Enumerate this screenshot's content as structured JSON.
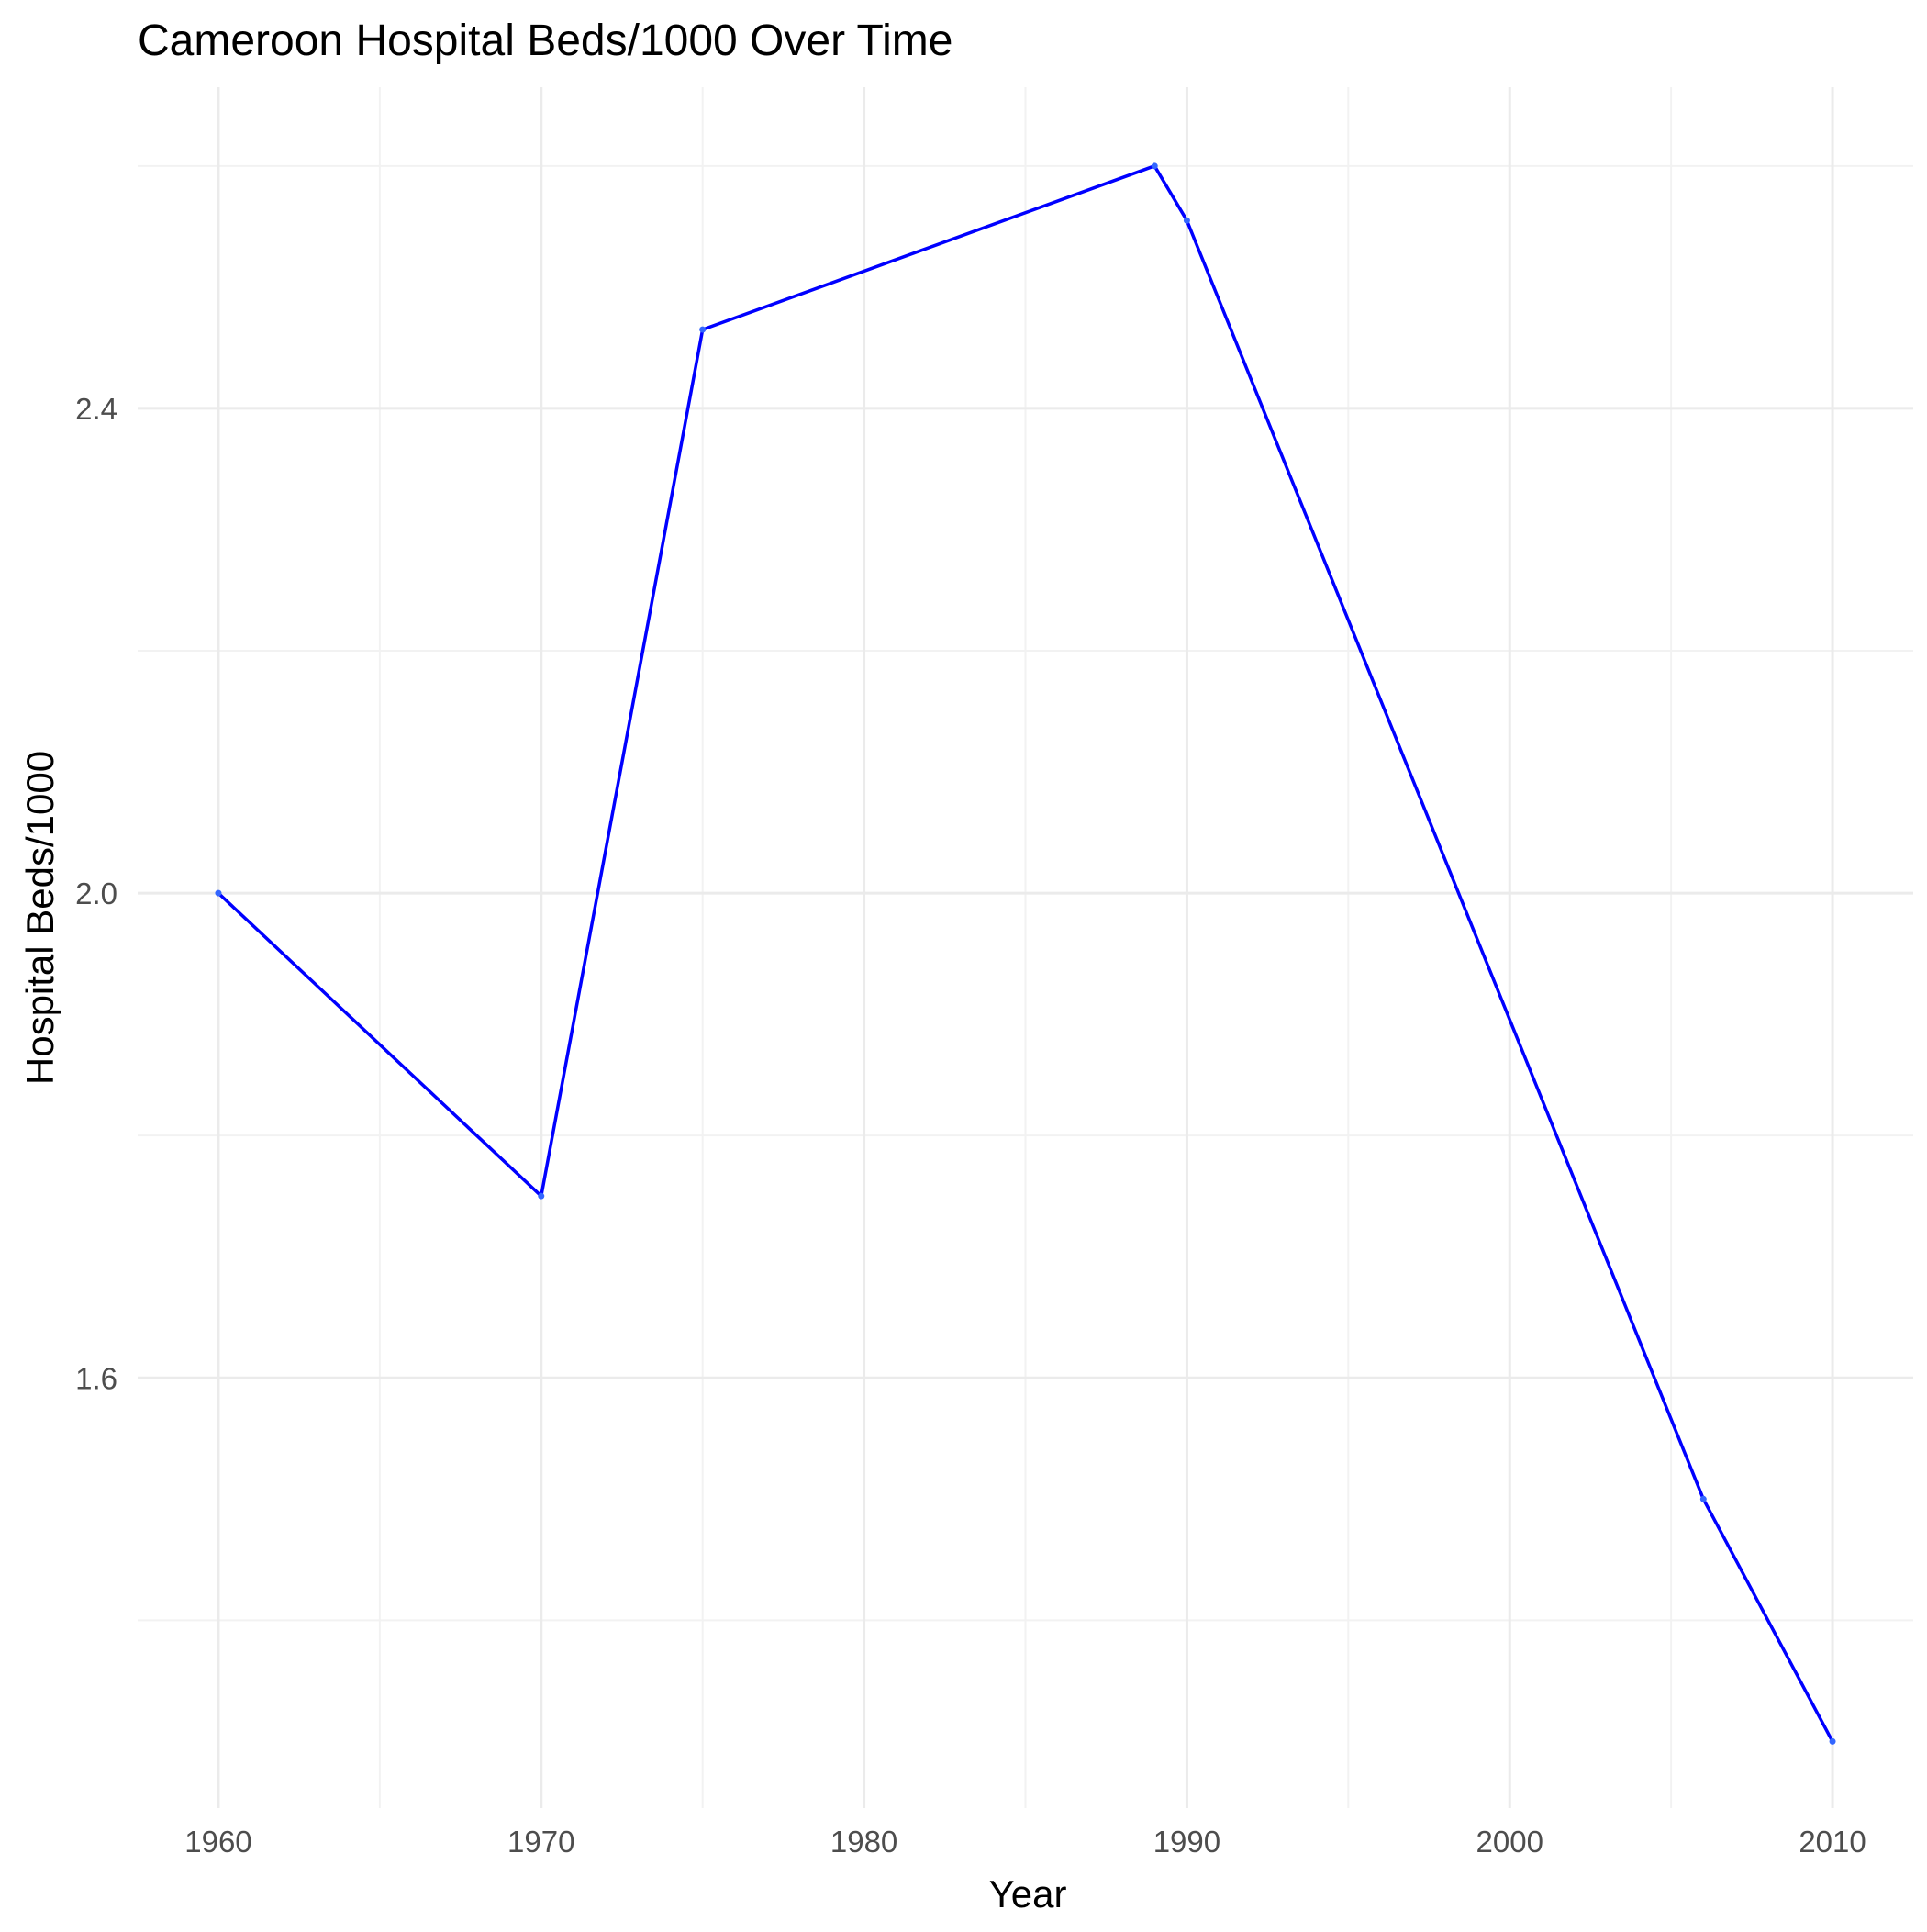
{
  "chart_data": {
    "type": "line",
    "title": "Cameroon Hospital Beds/1000 Over Time",
    "xlabel": "Year",
    "ylabel": "Hospital Beds/1000",
    "x": [
      1960,
      1970,
      1975,
      1989,
      1990,
      2006,
      2010
    ],
    "series": [
      {
        "values": [
          2.0,
          1.75,
          2.465,
          2.6,
          2.555,
          1.5,
          1.3
        ]
      }
    ],
    "xlim": [
      1957.5,
      2012.5
    ],
    "ylim": [
      1.245,
      2.665
    ],
    "x_ticks": [
      {
        "value": 1960,
        "label": "1960"
      },
      {
        "value": 1970,
        "label": "1970"
      },
      {
        "value": 1980,
        "label": "1980"
      },
      {
        "value": 1990,
        "label": "1990"
      },
      {
        "value": 2000,
        "label": "2000"
      },
      {
        "value": 2010,
        "label": "2010"
      }
    ],
    "x_minor_ticks": [
      1965,
      1975,
      1985,
      1995,
      2005
    ],
    "y_ticks": [
      {
        "value": 1.6,
        "label": "1.6"
      },
      {
        "value": 2.0,
        "label": "2.0"
      },
      {
        "value": 2.4,
        "label": "2.4"
      }
    ],
    "y_minor_ticks": [
      1.4,
      1.8,
      2.2,
      2.6
    ],
    "grid": true,
    "legend": "none",
    "colors": {
      "line": "#0000ff",
      "grid_major": "#ebebeb",
      "grid_minor": "#f2f2f2",
      "tick_label": "#4d4d4d",
      "title": "#000000"
    }
  }
}
